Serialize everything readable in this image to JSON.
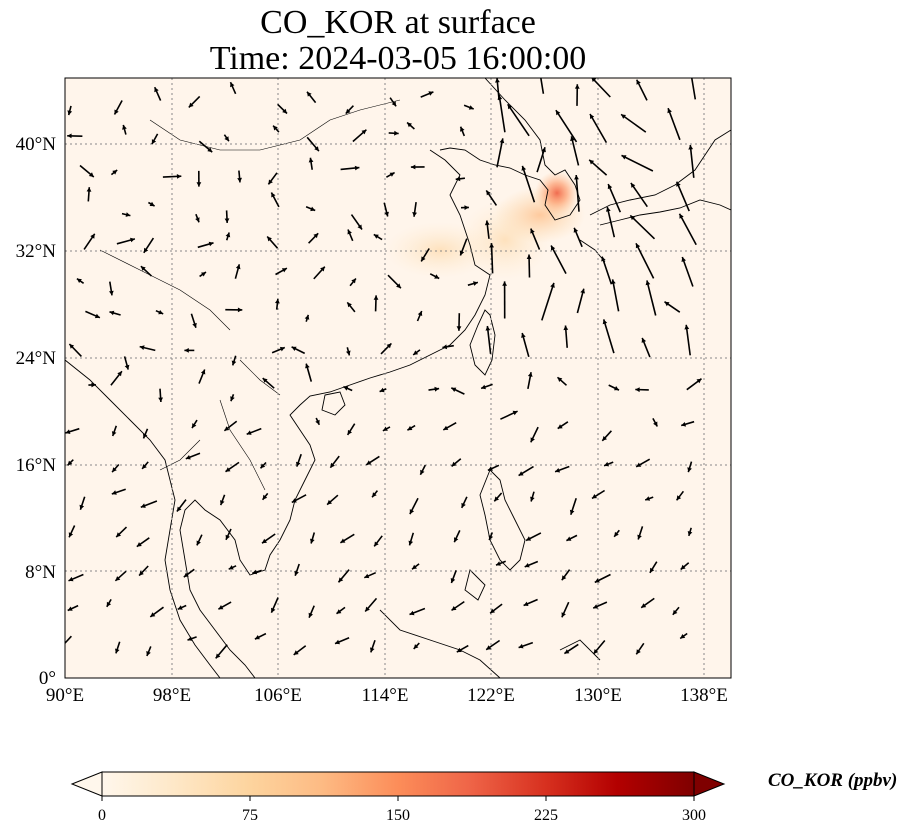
{
  "title": {
    "line1": "CO_KOR at surface",
    "line2": "Time: 2024-03-05 16:00:00"
  },
  "map": {
    "extent": {
      "lon": [
        90,
        140
      ],
      "lat": [
        0,
        45
      ]
    },
    "lon_ticks": [
      "90°E",
      "98°E",
      "106°E",
      "114°E",
      "122°E",
      "130°E",
      "138°E"
    ],
    "lat_ticks": [
      "0°",
      "8°N",
      "16°N",
      "24°N",
      "32°N",
      "40°N"
    ],
    "background_color": "#fff5eb",
    "gridlines": "dotted gray",
    "overlay": "wind vectors (quiver)",
    "plume_hotspot_note": "concentration maximum near Seoul / Korean peninsula"
  },
  "colorbar": {
    "label": "CO_KOR (ppbv)",
    "ticks": [
      "0",
      "75",
      "150",
      "225",
      "300"
    ],
    "range": [
      0,
      300
    ],
    "extend": "both",
    "colormap": "OrRd",
    "colors": [
      "#fff7ec",
      "#fee8c8",
      "#fdd49e",
      "#fdbb84",
      "#fc8d59",
      "#ef6548",
      "#d7301f",
      "#b30000",
      "#7f0000"
    ]
  }
}
